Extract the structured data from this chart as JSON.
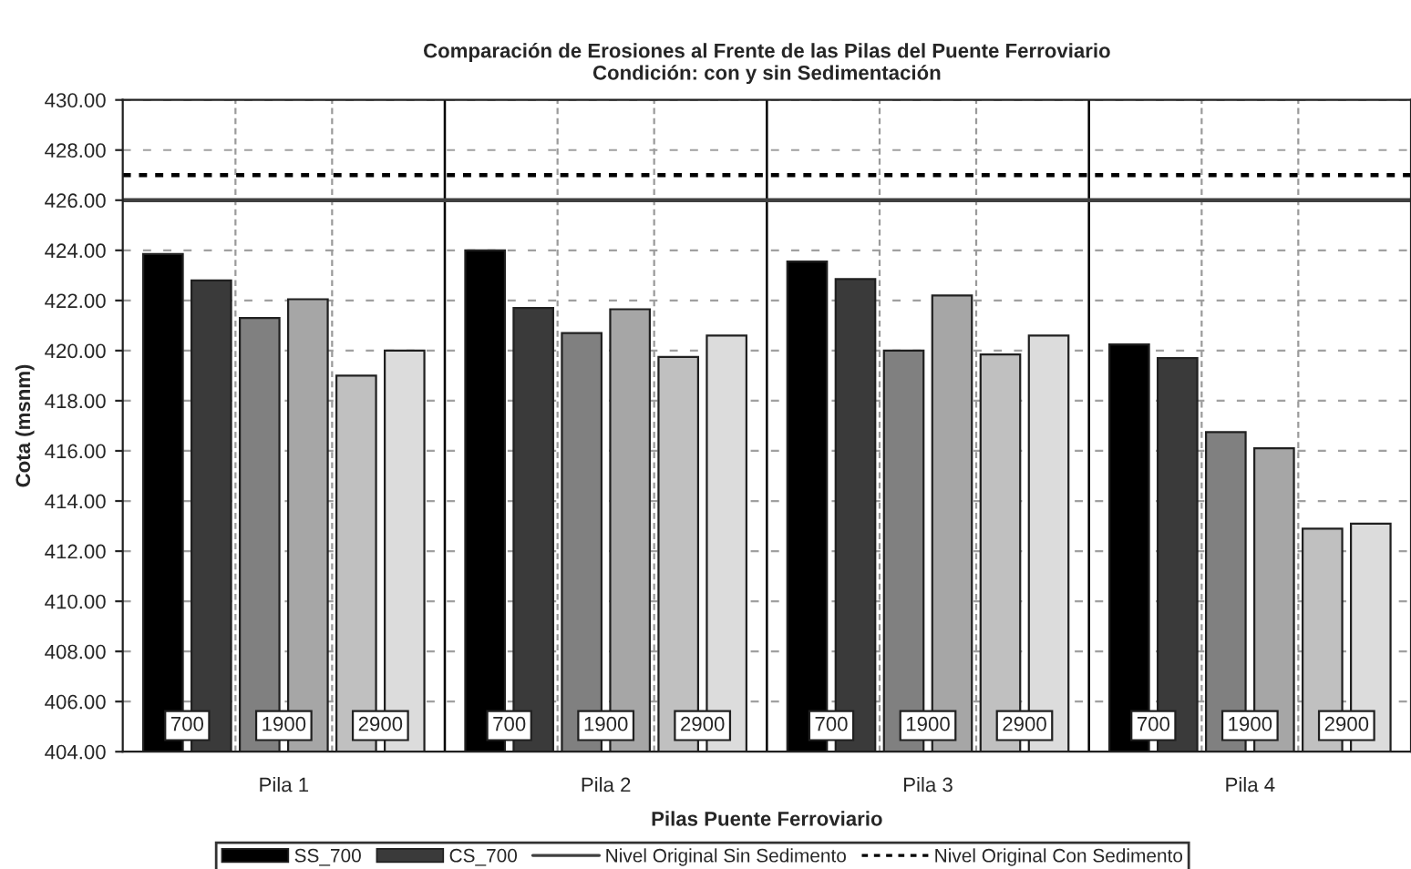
{
  "chart_data": {
    "type": "bar",
    "title": "Comparación de Erosiones al Frente de las Pilas del Puente Ferroviario\nCondición: con y sin Sedimentación",
    "xlabel": "Pilas Puente Ferroviario",
    "ylabel": "Cota (msnm)",
    "categories": [
      "Pila 1",
      "Pila 2",
      "Pila 3",
      "Pila 4"
    ],
    "series": [
      {
        "name": "SS_700",
        "color": "#000000",
        "values": [
          423.85,
          424.0,
          423.55,
          420.25
        ]
      },
      {
        "name": "CS_700",
        "color": "#3a3a3a",
        "values": [
          422.8,
          421.7,
          422.85,
          419.7
        ]
      },
      {
        "color": "#808080",
        "values": [
          421.3,
          420.7,
          420.0,
          416.75
        ]
      },
      {
        "color": "#a6a6a6",
        "values": [
          422.05,
          421.65,
          422.2,
          416.1
        ]
      },
      {
        "color": "#c0c0c0",
        "values": [
          419.0,
          419.75,
          419.85,
          412.9
        ]
      },
      {
        "color": "#dcdcdc",
        "values": [
          420.0,
          420.6,
          420.6,
          413.1
        ]
      }
    ],
    "ylim": [
      404,
      430
    ],
    "yticks": [
      {
        "value": 404,
        "label": "404.00"
      },
      {
        "value": 406,
        "label": "406.00"
      },
      {
        "value": 408,
        "label": "408.00"
      },
      {
        "value": 410,
        "label": "410.00"
      },
      {
        "value": 412,
        "label": "412.00"
      },
      {
        "value": 414,
        "label": "414.00"
      },
      {
        "value": 416,
        "label": "416.00"
      },
      {
        "value": 418,
        "label": "418.00"
      },
      {
        "value": 420,
        "label": "420.00"
      },
      {
        "value": 422,
        "label": "422.00"
      },
      {
        "value": 424,
        "label": "424.00"
      },
      {
        "value": 426,
        "label": "426.00"
      },
      {
        "value": 428,
        "label": "428.00"
      },
      {
        "value": 430,
        "label": "430.00"
      }
    ],
    "ref_lines": [
      {
        "axis": "y",
        "value": 426,
        "label": "Nivel Original Sin Sedimento",
        "color": "#404040",
        "line_style": "solid"
      },
      {
        "axis": "y",
        "value": 427,
        "label": "Nivel Original Con Sedimento",
        "color": "#000000",
        "line_style": "dotted"
      }
    ],
    "annotations": [
      "700",
      "1900",
      "2900",
      "700",
      "1900",
      "2900",
      "700",
      "1900",
      "2900",
      "700",
      "1900",
      "2900"
    ],
    "grid": "y",
    "legend": "bottom"
  }
}
